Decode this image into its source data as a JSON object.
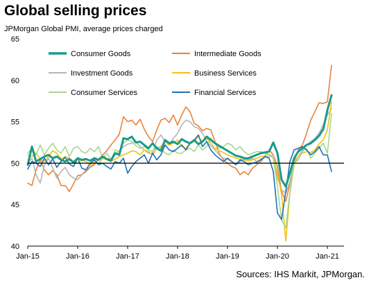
{
  "title": "Global selling prices",
  "subtitle": "JPMorgan Global PMI, average prices charged",
  "sources": "Sources: IHS Markit, JPMorgan.",
  "chart_data": {
    "type": "line",
    "ylim": [
      40,
      65
    ],
    "yticks": [
      40,
      45,
      50,
      55,
      60,
      65
    ],
    "xlim": [
      0,
      76
    ],
    "xticks": [
      {
        "label": "Jan-15",
        "x": 0
      },
      {
        "label": "Jan-16",
        "x": 12
      },
      {
        "label": "Jan-17",
        "x": 24
      },
      {
        "label": "Jan-18",
        "x": 36
      },
      {
        "label": "Jan-19",
        "x": 48
      },
      {
        "label": "Jan-20",
        "x": 60
      },
      {
        "label": "Jan-21",
        "x": 72
      }
    ],
    "reference_line": 50,
    "grid": "none",
    "series": [
      {
        "name": "Consumer Goods",
        "color": "#1a9a8a",
        "width": 3,
        "values": [
          49.8,
          52.0,
          50.2,
          50.5,
          50.8,
          51.0,
          50.6,
          50.8,
          50.4,
          50.2,
          50.5,
          50.1,
          50.6,
          50.4,
          50.5,
          50.3,
          50.6,
          50.4,
          50.8,
          50.5,
          50.3,
          51.2,
          51.0,
          53.0,
          52.9,
          53.2,
          52.5,
          52.6,
          52.2,
          51.8,
          52.4,
          51.8,
          51.5,
          52.8,
          52.4,
          52.6,
          52.3,
          52.9,
          52.6,
          52.4,
          52.8,
          52.3,
          52.6,
          53.2,
          52.8,
          52.4,
          52.1,
          51.8,
          51.5,
          51.2,
          50.9,
          50.8,
          50.6,
          50.6,
          50.8,
          51.0,
          51.2,
          51.3,
          51.4,
          52.5,
          51.2,
          48.0,
          47.2,
          48.8,
          50.6,
          51.4,
          51.8,
          52.2,
          52.4,
          52.8,
          53.3,
          54.1,
          56.4,
          58.2
        ]
      },
      {
        "name": "Intermediate Goods",
        "color": "#e8823a",
        "width": 1.6,
        "values": [
          47.6,
          47.3,
          49.2,
          50.4,
          49.2,
          48.6,
          49.1,
          48.6,
          47.3,
          47.3,
          46.6,
          47.5,
          48.5,
          48.6,
          49.0,
          49.5,
          49.8,
          50.4,
          51.0,
          51.5,
          52.2,
          52.8,
          53.5,
          55.6,
          55.0,
          55.2,
          54.6,
          55.3,
          54.1,
          53.2,
          52.6,
          54.0,
          55.2,
          55.4,
          54.9,
          55.8,
          54.6,
          55.8,
          56.8,
          56.2,
          54.8,
          54.5,
          53.9,
          54.2,
          54.0,
          52.6,
          51.2,
          50.4,
          50.0,
          49.6,
          49.4,
          48.6,
          49.0,
          48.6,
          49.4,
          49.8,
          50.2,
          50.8,
          51.6,
          51.0,
          49.6,
          46.6,
          45.4,
          47.6,
          50.2,
          51.6,
          52.2,
          53.6,
          55.2,
          56.2,
          57.3,
          57.2,
          57.4,
          61.8
        ]
      },
      {
        "name": "Investment Goods",
        "color": "#b5b5b5",
        "width": 1.6,
        "values": [
          50.0,
          50.6,
          48.6,
          47.6,
          49.8,
          50.6,
          49.4,
          48.2,
          49.0,
          49.5,
          48.6,
          48.2,
          48.0,
          48.6,
          49.2,
          49.6,
          50.0,
          50.5,
          50.6,
          50.5,
          50.6,
          51.0,
          51.5,
          52.0,
          52.3,
          52.4,
          52.6,
          52.0,
          51.6,
          51.2,
          51.2,
          52.8,
          53.4,
          52.6,
          52.2,
          53.0,
          53.6,
          54.6,
          55.2,
          55.0,
          54.4,
          54.2,
          53.6,
          52.6,
          52.1,
          51.6,
          51.0,
          50.6,
          50.5,
          50.2,
          49.8,
          50.2,
          50.5,
          50.4,
          50.6,
          50.2,
          50.5,
          50.7,
          50.8,
          51.0,
          48.2,
          46.8,
          46.4,
          47.8,
          50.1,
          50.8,
          51.5,
          52.2,
          52.6,
          53.0,
          53.6,
          54.6,
          55.8,
          56.6
        ]
      },
      {
        "name": "Business Services",
        "color": "#f2c10f",
        "width": 1.6,
        "values": [
          51.0,
          50.8,
          51.2,
          50.5,
          50.2,
          50.8,
          51.5,
          51.2,
          50.5,
          50.8,
          50.6,
          50.2,
          50.0,
          50.4,
          50.2,
          49.8,
          50.2,
          49.9,
          50.6,
          50.4,
          50.2,
          50.5,
          50.8,
          51.0,
          51.2,
          51.5,
          51.4,
          51.0,
          51.6,
          51.4,
          51.0,
          51.8,
          52.0,
          52.6,
          52.2,
          52.4,
          52.8,
          52.0,
          51.8,
          52.4,
          52.6,
          53.2,
          52.6,
          53.0,
          52.4,
          51.8,
          51.5,
          51.3,
          51.0,
          50.8,
          50.6,
          50.5,
          50.4,
          50.3,
          50.4,
          50.6,
          50.8,
          50.9,
          51.1,
          50.6,
          48.8,
          46.2,
          40.6,
          46.4,
          49.8,
          50.8,
          51.2,
          51.4,
          51.3,
          51.6,
          52.3,
          52.8,
          54.0,
          57.4
        ]
      },
      {
        "name": "Consumer Services",
        "color": "#a8d58e",
        "width": 1.6,
        "values": [
          51.2,
          51.8,
          51.0,
          52.2,
          51.0,
          51.8,
          52.4,
          51.6,
          51.2,
          52.0,
          50.8,
          51.8,
          52.0,
          51.4,
          51.2,
          51.8,
          51.4,
          52.0,
          50.6,
          51.2,
          50.4,
          51.6,
          51.4,
          52.4,
          52.8,
          52.6,
          52.1,
          51.8,
          52.0,
          51.6,
          51.4,
          52.0,
          51.8,
          51.2,
          51.0,
          51.6,
          51.2,
          51.2,
          51.6,
          51.8,
          51.4,
          52.2,
          51.6,
          52.0,
          53.0,
          52.4,
          51.8,
          52.0,
          52.4,
          52.2,
          51.6,
          52.0,
          51.4,
          51.0,
          51.2,
          51.4,
          51.4,
          51.2,
          51.0,
          50.6,
          47.2,
          43.1,
          42.2,
          46.6,
          50.0,
          50.4,
          51.4,
          51.8,
          50.6,
          51.2,
          51.8,
          52.4,
          51.2,
          56.0
        ]
      },
      {
        "name": "Financial Services",
        "color": "#2070b0",
        "width": 1.6,
        "values": [
          49.3,
          50.2,
          50.0,
          49.6,
          50.6,
          49.8,
          50.5,
          49.5,
          50.2,
          50.7,
          49.9,
          49.6,
          50.6,
          49.4,
          49.2,
          50.0,
          50.4,
          49.8,
          50.0,
          49.6,
          49.3,
          50.2,
          50.0,
          50.6,
          48.8,
          49.6,
          50.2,
          50.6,
          51.0,
          50.0,
          51.2,
          50.4,
          51.0,
          52.2,
          51.6,
          51.4,
          51.8,
          52.2,
          51.6,
          52.4,
          52.8,
          53.4,
          52.0,
          52.6,
          51.6,
          51.0,
          50.6,
          50.2,
          50.6,
          50.2,
          49.8,
          50.4,
          50.2,
          49.8,
          50.0,
          50.1,
          50.4,
          50.8,
          50.6,
          49.0,
          44.0,
          43.2,
          46.6,
          50.2,
          51.6,
          51.8,
          52.0,
          51.6,
          51.0,
          51.4,
          52.0,
          51.0,
          51.0,
          49.0
        ]
      }
    ],
    "legend": {
      "placement": "top",
      "entries": [
        "Consumer Goods",
        "Intermediate Goods",
        "Investment Goods",
        "Business Services",
        "Consumer Services",
        "Financial Services"
      ]
    }
  }
}
